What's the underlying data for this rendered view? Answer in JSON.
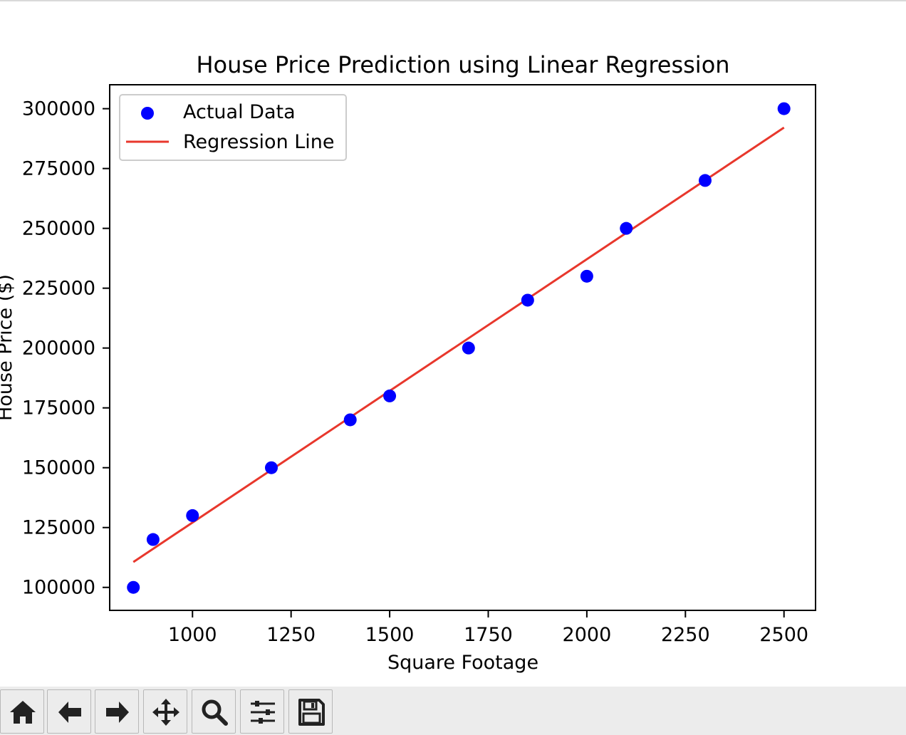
{
  "chart_data": {
    "type": "scatter",
    "title": "House Price Prediction using Linear Regression",
    "xlabel": "Square Footage",
    "ylabel": "House Price ($)",
    "xlim": [
      790,
      2580
    ],
    "ylim": [
      90400,
      310000
    ],
    "xticks": [
      1000,
      1250,
      1500,
      1750,
      2000,
      2250,
      2500
    ],
    "yticks": [
      100000,
      125000,
      150000,
      175000,
      200000,
      225000,
      250000,
      275000,
      300000
    ],
    "series": [
      {
        "name": "Actual Data",
        "kind": "scatter",
        "color": "#0000ff",
        "x": [
          850,
          900,
          1000,
          1200,
          1400,
          1500,
          1700,
          1850,
          2000,
          2100,
          2300,
          2500
        ],
        "y": [
          100000,
          120000,
          130000,
          150000,
          170000,
          180000,
          200000,
          220000,
          230000,
          250000,
          270000,
          300000
        ]
      },
      {
        "name": "Regression Line",
        "kind": "line",
        "color": "#e8372c",
        "x": [
          850,
          2500
        ],
        "y": [
          110600,
          292100
        ]
      }
    ],
    "legend": {
      "position": "top-left",
      "entries": [
        "Actual Data",
        "Regression Line"
      ]
    },
    "grid": false
  },
  "toolbar": {
    "buttons": [
      "home-icon",
      "back-arrow-icon",
      "forward-arrow-icon",
      "pan-icon",
      "zoom-icon",
      "configure-subplots-icon",
      "save-icon"
    ]
  }
}
